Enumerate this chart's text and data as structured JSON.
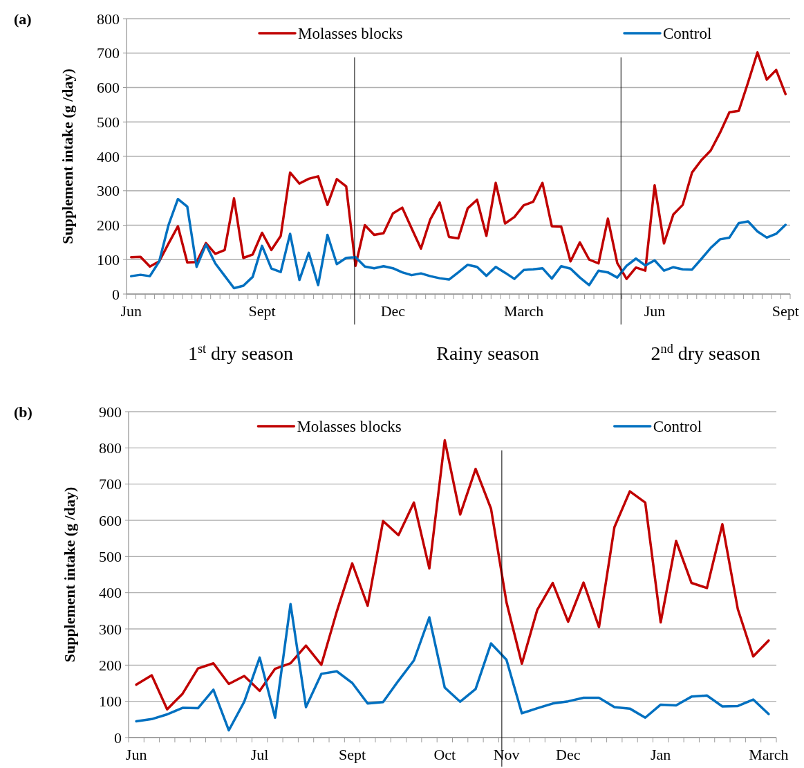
{
  "chart_data": [
    {
      "type": "line",
      "title": "(a)",
      "ylabel": "Supplement intake (g /day)",
      "categories": [
        "Jun",
        null,
        null,
        null,
        null,
        null,
        null,
        null,
        null,
        null,
        null,
        null,
        null,
        null,
        "Sept",
        null,
        null,
        null,
        null,
        null,
        null,
        null,
        null,
        null,
        null,
        null,
        null,
        null,
        "Dec",
        null,
        null,
        null,
        null,
        null,
        null,
        null,
        null,
        null,
        null,
        null,
        null,
        null,
        "March",
        null,
        null,
        null,
        null,
        null,
        null,
        null,
        null,
        null,
        null,
        null,
        null,
        null,
        "Jun",
        null,
        null,
        null,
        null,
        null,
        null,
        null,
        null,
        null,
        null,
        null,
        null,
        null,
        "Sept"
      ],
      "ylim": [
        0,
        800
      ],
      "yticks": [
        0,
        100,
        200,
        300,
        400,
        500,
        600,
        700,
        800
      ],
      "grid": "y",
      "legend": "top",
      "line_style": "solid",
      "series": [
        {
          "name": "Molasses blocks",
          "color": "#c00000",
          "values": [
            107,
            108,
            80,
            95,
            147,
            197,
            92,
            93,
            148,
            117,
            128,
            278,
            105,
            115,
            178,
            128,
            169,
            353,
            321,
            335,
            342,
            259,
            334,
            313,
            82,
            200,
            172,
            177,
            234,
            251,
            191,
            132,
            217,
            266,
            166,
            162,
            249,
            274,
            169,
            323,
            205,
            224,
            258,
            268,
            323,
            197,
            196,
            95,
            150,
            100,
            89,
            219,
            90,
            44,
            77,
            68,
            316,
            147,
            231,
            259,
            353,
            389,
            417,
            469,
            528,
            532,
            615,
            702,
            623,
            651,
            581
          ]
        },
        {
          "name": "Control",
          "color": "#0070c0",
          "values": [
            52,
            56,
            52,
            95,
            201,
            276,
            254,
            79,
            144,
            89,
            53,
            17,
            24,
            50,
            140,
            74,
            64,
            175,
            41,
            120,
            26,
            172,
            87,
            105,
            107,
            80,
            75,
            81,
            75,
            63,
            55,
            60,
            52,
            46,
            42,
            63,
            85,
            79,
            53,
            79,
            62,
            44,
            70,
            72,
            75,
            45,
            81,
            74,
            48,
            26,
            68,
            63,
            48,
            82,
            103,
            83,
            98,
            68,
            78,
            72,
            71,
            102,
            134,
            159,
            164,
            206,
            211,
            182,
            164,
            175,
            201
          ]
        }
      ],
      "annotations": [
        "1$^{st}$ dry season",
        "Rainy season",
        "2$^{nd}$ dry season"
      ]
    },
    {
      "type": "line",
      "title": "(b)",
      "ylabel": "Supplement intake (g /day)",
      "categories": [
        "Jun",
        null,
        null,
        null,
        null,
        null,
        null,
        null,
        "Jul",
        null,
        null,
        null,
        null,
        null,
        "Sept",
        null,
        null,
        null,
        null,
        null,
        "Oct",
        null,
        null,
        null,
        "Nov",
        null,
        null,
        null,
        "Dec",
        null,
        null,
        null,
        null,
        null,
        "Jan",
        null,
        null,
        null,
        null,
        null,
        null,
        "March"
      ],
      "ylim": [
        0,
        900
      ],
      "yticks": [
        0,
        100,
        200,
        300,
        400,
        500,
        600,
        700,
        800,
        900
      ],
      "grid": "y",
      "legend": "top",
      "line_style": "solid",
      "series": [
        {
          "name": "Molasses blocks",
          "color": "#c00000",
          "values": [
            146,
            172,
            78,
            121,
            191,
            205,
            148,
            170,
            129,
            190,
            205,
            254,
            201,
            348,
            481,
            364,
            598,
            559,
            649,
            467,
            821,
            616,
            742,
            632,
            374,
            204,
            353,
            427,
            320,
            428,
            305,
            581,
            680,
            649,
            318,
            543,
            427,
            413,
            589,
            355,
            224,
            268
          ]
        },
        {
          "name": "Control",
          "color": "#0070c0",
          "values": [
            45,
            51,
            64,
            82,
            81,
            132,
            20,
            99,
            221,
            55,
            369,
            84,
            176,
            183,
            151,
            94,
            98,
            157,
            213,
            332,
            138,
            99,
            134,
            260,
            215,
            67,
            81,
            94,
            100,
            110,
            110,
            84,
            80,
            55,
            91,
            89,
            113,
            116,
            86,
            87,
            105,
            65
          ]
        }
      ]
    }
  ]
}
